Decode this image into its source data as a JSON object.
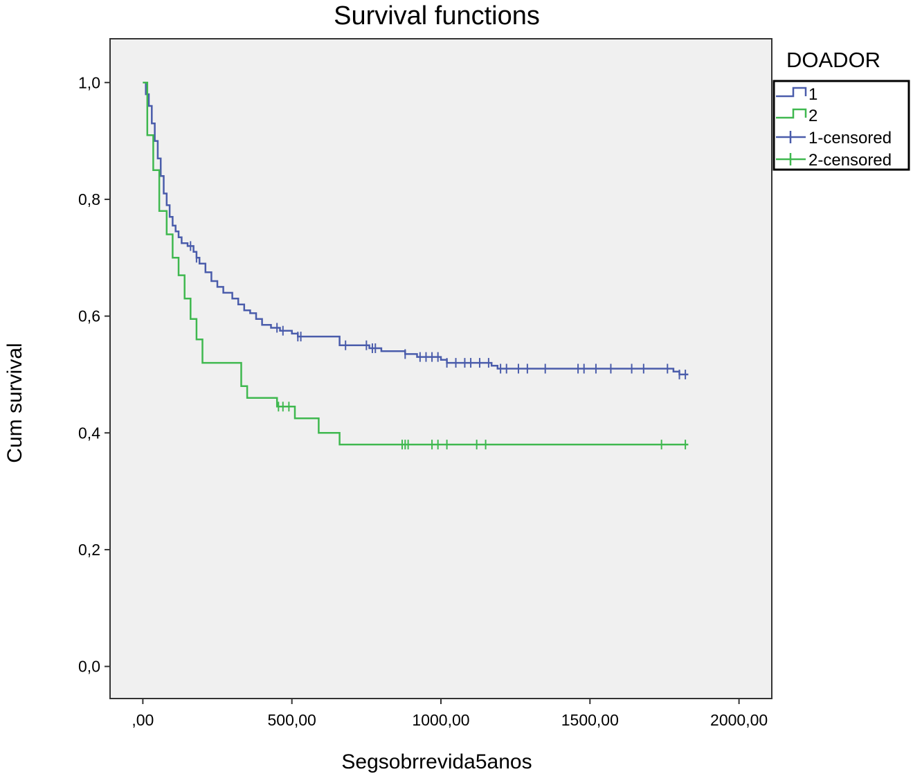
{
  "chart_data": {
    "type": "line",
    "title": "Survival functions",
    "xlabel": "Segsobrrevida5anos",
    "ylabel": "Cum survival",
    "xlim": [
      -110,
      2110
    ],
    "ylim": [
      -0.055,
      1.075
    ],
    "x_ticks": [
      0,
      500,
      1000,
      1500,
      2000
    ],
    "x_tick_labels": [
      ",00",
      "500,00",
      "1000,00",
      "1500,00",
      "2000,00"
    ],
    "y_ticks": [
      0,
      0.2,
      0.4,
      0.6,
      0.8,
      1.0
    ],
    "y_tick_labels": [
      "0,0",
      "0,2",
      "0,4",
      "0,6",
      "0,8",
      "1,0"
    ],
    "grid": false,
    "legend": {
      "title": "DOADOR",
      "position": "right-top",
      "entries": [
        "1",
        "2",
        "1-censored",
        "2-censored"
      ]
    },
    "colors": {
      "series1": "#4a5cab",
      "series2": "#3fb84f",
      "plot_bg": "#f0f0f0"
    },
    "series": [
      {
        "name": "1",
        "step_points": [
          [
            0,
            1.0
          ],
          [
            10,
            0.98
          ],
          [
            20,
            0.96
          ],
          [
            30,
            0.93
          ],
          [
            40,
            0.9
          ],
          [
            50,
            0.87
          ],
          [
            60,
            0.84
          ],
          [
            70,
            0.81
          ],
          [
            80,
            0.79
          ],
          [
            90,
            0.77
          ],
          [
            100,
            0.755
          ],
          [
            110,
            0.745
          ],
          [
            120,
            0.735
          ],
          [
            130,
            0.725
          ],
          [
            150,
            0.72
          ],
          [
            170,
            0.71
          ],
          [
            180,
            0.7
          ],
          [
            190,
            0.69
          ],
          [
            210,
            0.675
          ],
          [
            230,
            0.66
          ],
          [
            250,
            0.65
          ],
          [
            270,
            0.64
          ],
          [
            300,
            0.63
          ],
          [
            320,
            0.62
          ],
          [
            340,
            0.61
          ],
          [
            360,
            0.605
          ],
          [
            380,
            0.595
          ],
          [
            400,
            0.585
          ],
          [
            430,
            0.58
          ],
          [
            460,
            0.575
          ],
          [
            500,
            0.57
          ],
          [
            520,
            0.565
          ],
          [
            600,
            0.565
          ],
          [
            660,
            0.55
          ],
          [
            760,
            0.545
          ],
          [
            800,
            0.54
          ],
          [
            880,
            0.535
          ],
          [
            920,
            0.53
          ],
          [
            980,
            0.53
          ],
          [
            1000,
            0.525
          ],
          [
            1020,
            0.52
          ],
          [
            1170,
            0.515
          ],
          [
            1190,
            0.51
          ],
          [
            1750,
            0.51
          ],
          [
            1780,
            0.505
          ],
          [
            1800,
            0.5
          ],
          [
            1830,
            0.5
          ]
        ],
        "censored_x": [
          160,
          180,
          450,
          470,
          520,
          530,
          680,
          750,
          770,
          780,
          880,
          930,
          950,
          970,
          990,
          1020,
          1050,
          1080,
          1100,
          1130,
          1160,
          1200,
          1220,
          1260,
          1290,
          1350,
          1460,
          1480,
          1520,
          1570,
          1640,
          1680,
          1760,
          1800,
          1820
        ]
      },
      {
        "name": "2",
        "step_points": [
          [
            0,
            1.0
          ],
          [
            15,
            0.91
          ],
          [
            35,
            0.85
          ],
          [
            55,
            0.78
          ],
          [
            80,
            0.74
          ],
          [
            100,
            0.7
          ],
          [
            120,
            0.67
          ],
          [
            140,
            0.63
          ],
          [
            160,
            0.595
          ],
          [
            180,
            0.56
          ],
          [
            200,
            0.52
          ],
          [
            330,
            0.48
          ],
          [
            350,
            0.46
          ],
          [
            450,
            0.445
          ],
          [
            510,
            0.425
          ],
          [
            590,
            0.4
          ],
          [
            660,
            0.38
          ],
          [
            1830,
            0.38
          ]
        ],
        "censored_x": [
          455,
          470,
          490,
          870,
          880,
          890,
          970,
          990,
          1020,
          1120,
          1150,
          1740,
          1820
        ]
      }
    ]
  }
}
